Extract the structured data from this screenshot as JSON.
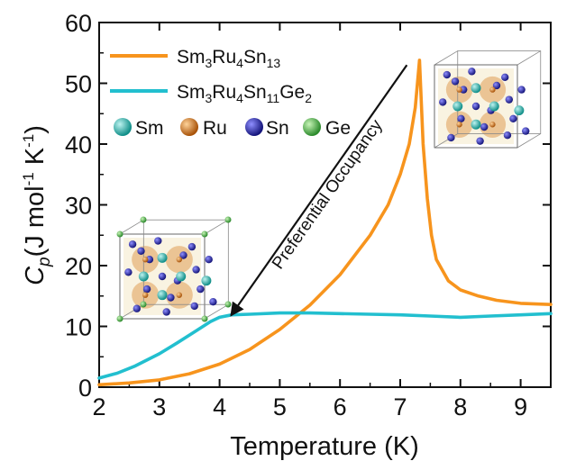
{
  "chart_data": {
    "type": "line",
    "title": "",
    "xlabel": "Temperature (K)",
    "ylabel": "Cp(J mol-1 K-1)",
    "xlim": [
      2,
      9.5
    ],
    "ylim": [
      0,
      60
    ],
    "xticks": [
      2,
      3,
      4,
      5,
      6,
      7,
      8,
      9
    ],
    "yticks": [
      0,
      10,
      20,
      30,
      40,
      50,
      60
    ],
    "xtick_labels": [
      "2",
      "3",
      "4",
      "5",
      "6",
      "7",
      "8",
      "9"
    ],
    "ytick_labels": [
      "0",
      "10",
      "20",
      "30",
      "40",
      "50",
      "60"
    ],
    "series": [
      {
        "name": "Sm3Ru4Sn13",
        "color": "#f7941d",
        "x": [
          2.0,
          2.5,
          3.0,
          3.5,
          4.0,
          4.5,
          5.0,
          5.5,
          6.0,
          6.5,
          6.8,
          7.0,
          7.15,
          7.25,
          7.32,
          7.38,
          7.45,
          7.52,
          7.6,
          7.8,
          8.0,
          8.3,
          8.6,
          9.0,
          9.5
        ],
        "y": [
          0.4,
          0.7,
          1.2,
          2.2,
          3.8,
          6.2,
          9.5,
          13.5,
          18.5,
          25.0,
          30.0,
          35.0,
          40.0,
          46.0,
          53.8,
          40.0,
          31.0,
          25.0,
          21.0,
          17.5,
          16.0,
          15.0,
          14.3,
          13.8,
          13.6
        ]
      },
      {
        "name": "Sm3Ru4Sn11Ge2",
        "color": "#22bfcf",
        "x": [
          2.0,
          2.3,
          2.6,
          3.0,
          3.3,
          3.6,
          3.85,
          4.0,
          4.2,
          4.5,
          5.0,
          5.5,
          6.0,
          6.5,
          7.0,
          7.5,
          8.0,
          8.5,
          9.0,
          9.5
        ],
        "y": [
          1.5,
          2.3,
          3.5,
          5.5,
          7.3,
          9.2,
          10.8,
          11.5,
          11.9,
          12.0,
          12.2,
          12.2,
          12.1,
          12.0,
          11.9,
          11.7,
          11.5,
          11.7,
          11.9,
          12.1
        ]
      }
    ],
    "legend": {
      "placement": "top-left",
      "entries": [
        {
          "base": "Sm",
          "sub1": "3",
          "mid1": "Ru",
          "sub2": "4",
          "mid2": "Sn",
          "sub3": "13",
          "mid3": "",
          "sub4": ""
        },
        {
          "base": "Sm",
          "sub1": "3",
          "mid1": "Ru",
          "sub2": "4",
          "mid2": "Sn",
          "sub3": "11",
          "mid3": "Ge",
          "sub4": "2"
        }
      ],
      "atoms": [
        {
          "label": "Sm",
          "color": "#1fb8b0"
        },
        {
          "label": "Ru",
          "color": "#d97a1a"
        },
        {
          "label": "Sn",
          "color": "#2a2ab0"
        },
        {
          "label": "Ge",
          "color": "#3aa83a"
        }
      ]
    },
    "annotation": {
      "text": "Preferential Occupancy",
      "from": [
        7.2,
        53
      ],
      "to": [
        4.1,
        11.5
      ]
    }
  }
}
